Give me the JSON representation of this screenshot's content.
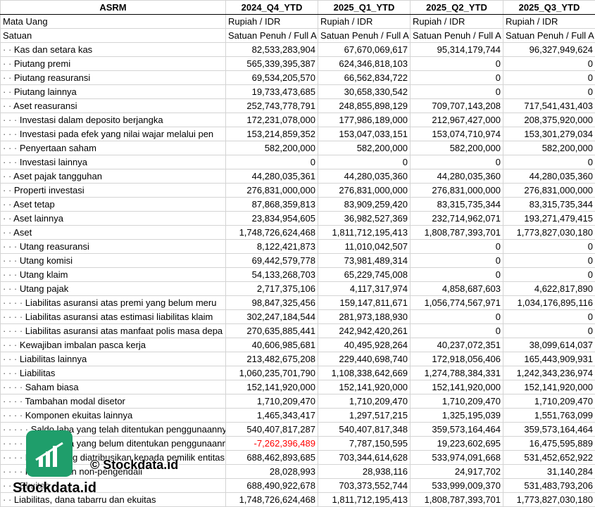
{
  "header": {
    "ticker": "ASRM",
    "periods": [
      "2024_Q4_YTD",
      "2025_Q1_YTD",
      "2025_Q2_YTD",
      "2025_Q3_YTD"
    ]
  },
  "meta_rows": [
    {
      "label": "Mata Uang",
      "values": [
        "Rupiah / IDR",
        "Rupiah / IDR",
        "Rupiah / IDR",
        "Rupiah / IDR"
      ]
    },
    {
      "label": "Satuan",
      "values": [
        "Satuan Penuh / Full A",
        "Satuan Penuh / Full A",
        "Satuan Penuh / Full A",
        "Satuan Penuh / Full A"
      ]
    }
  ],
  "rows": [
    {
      "dots": "· · ",
      "label": "Kas dan setara kas",
      "values": [
        "82,533,283,904",
        "67,670,069,617",
        "95,314,179,744",
        "96,327,949,624"
      ]
    },
    {
      "dots": "· · ",
      "label": "Piutang premi",
      "values": [
        "565,339,395,387",
        "624,346,818,103",
        "0",
        "0"
      ]
    },
    {
      "dots": "· · ",
      "label": "Piutang reasuransi",
      "values": [
        "69,534,205,570",
        "66,562,834,722",
        "0",
        "0"
      ]
    },
    {
      "dots": "· · ",
      "label": "Piutang lainnya",
      "values": [
        "19,733,473,685",
        "30,658,330,542",
        "0",
        "0"
      ]
    },
    {
      "dots": "· · ",
      "label": "Aset reasuransi",
      "values": [
        "252,743,778,791",
        "248,855,898,129",
        "709,707,143,208",
        "717,541,431,403"
      ]
    },
    {
      "dots": "· · · ",
      "label": "Investasi dalam deposito berjangka",
      "values": [
        "172,231,078,000",
        "177,986,189,000",
        "212,967,427,000",
        "208,375,920,000"
      ]
    },
    {
      "dots": "· · · ",
      "label": "Investasi pada efek yang nilai wajar melalui pen",
      "values": [
        "153,214,859,352",
        "153,047,033,151",
        "153,074,710,974",
        "153,301,279,034"
      ]
    },
    {
      "dots": "· · · ",
      "label": "Penyertaan saham",
      "values": [
        "582,200,000",
        "582,200,000",
        "582,200,000",
        "582,200,000"
      ]
    },
    {
      "dots": "· · · ",
      "label": "Investasi lainnya",
      "values": [
        "0",
        "0",
        "0",
        "0"
      ]
    },
    {
      "dots": "· · ",
      "label": "Aset pajak tangguhan",
      "values": [
        "44,280,035,361",
        "44,280,035,360",
        "44,280,035,360",
        "44,280,035,360"
      ]
    },
    {
      "dots": "· · ",
      "label": "Properti investasi",
      "values": [
        "276,831,000,000",
        "276,831,000,000",
        "276,831,000,000",
        "276,831,000,000"
      ]
    },
    {
      "dots": "· · ",
      "label": "Aset tetap",
      "values": [
        "87,868,359,813",
        "83,909,259,420",
        "83,315,735,344",
        "83,315,735,344"
      ]
    },
    {
      "dots": "· · ",
      "label": "Aset lainnya",
      "values": [
        "23,834,954,605",
        "36,982,527,369",
        "232,714,962,071",
        "193,271,479,415"
      ]
    },
    {
      "dots": "· · ",
      "label": "Aset",
      "values": [
        "1,748,726,624,468",
        "1,811,712,195,413",
        "1,808,787,393,701",
        "1,773,827,030,180"
      ]
    },
    {
      "dots": "· · · ",
      "label": "Utang reasuransi",
      "values": [
        "8,122,421,873",
        "11,010,042,507",
        "0",
        "0"
      ]
    },
    {
      "dots": "· · · ",
      "label": "Utang komisi",
      "values": [
        "69,442,579,778",
        "73,981,489,314",
        "0",
        "0"
      ]
    },
    {
      "dots": "· · · ",
      "label": "Utang klaim",
      "values": [
        "54,133,268,703",
        "65,229,745,008",
        "0",
        "0"
      ]
    },
    {
      "dots": "· · · ",
      "label": "Utang pajak",
      "values": [
        "2,717,375,106",
        "4,117,317,974",
        "4,858,687,603",
        "4,622,817,890"
      ]
    },
    {
      "dots": "· · · · ",
      "label": "Liabilitas asuransi atas premi yang belum meru",
      "values": [
        "98,847,325,456",
        "159,147,811,671",
        "1,056,774,567,971",
        "1,034,176,895,116"
      ]
    },
    {
      "dots": "· · · · ",
      "label": "Liabilitas asuransi atas estimasi liabilitas klaim",
      "values": [
        "302,247,184,544",
        "281,973,188,930",
        "0",
        "0"
      ]
    },
    {
      "dots": "· · · · ",
      "label": "Liabilitas asuransi atas manfaat polis masa depa",
      "values": [
        "270,635,885,441",
        "242,942,420,261",
        "0",
        "0"
      ]
    },
    {
      "dots": "· · · ",
      "label": "Kewajiban imbalan pasca kerja",
      "values": [
        "40,606,985,681",
        "40,495,928,264",
        "40,237,072,351",
        "38,099,614,037"
      ]
    },
    {
      "dots": "· · · ",
      "label": "Liabilitas lainnya",
      "values": [
        "213,482,675,208",
        "229,440,698,740",
        "172,918,056,406",
        "165,443,909,931"
      ]
    },
    {
      "dots": "· · · ",
      "label": "Liabilitas",
      "values": [
        "1,060,235,701,790",
        "1,108,338,642,669",
        "1,274,788,384,331",
        "1,242,343,236,974"
      ]
    },
    {
      "dots": "· · · · ",
      "label": "Saham biasa",
      "values": [
        "152,141,920,000",
        "152,141,920,000",
        "152,141,920,000",
        "152,141,920,000"
      ]
    },
    {
      "dots": "· · · · ",
      "label": "Tambahan modal disetor",
      "values": [
        "1,710,209,470",
        "1,710,209,470",
        "1,710,209,470",
        "1,710,209,470"
      ]
    },
    {
      "dots": "· · · · ",
      "label": "Komponen ekuitas lainnya",
      "values": [
        "1,465,343,417",
        "1,297,517,215",
        "1,325,195,039",
        "1,551,763,099"
      ]
    },
    {
      "dots": "· · · · · ",
      "label": "Saldo laba yang telah ditentukan penggunaannya",
      "values": [
        "540,407,817,287",
        "540,407,817,348",
        "359,573,164,464",
        "359,573,164,464"
      ]
    },
    {
      "dots": "· · · · · ",
      "label": "Saldo laba yang belum ditentukan penggunaannya",
      "values": [
        "-7,262,396,489",
        "7,787,150,595",
        "19,223,602,695",
        "16,475,595,889"
      ],
      "negative_first": true
    },
    {
      "dots": "· · · · ",
      "label": "Ekuitas yang diatribusikan kepada pemilik entitas",
      "values": [
        "688,462,893,685",
        "703,344,614,628",
        "533,974,091,668",
        "531,452,652,922"
      ]
    },
    {
      "dots": "· · · · ",
      "label": "Kepentingan non-pengendali",
      "values": [
        "28,028,993",
        "28,938,116",
        "24,917,702",
        "31,140,284"
      ]
    },
    {
      "dots": "· · · ",
      "label": "Ekuitas",
      "values": [
        "688,490,922,678",
        "703,373,552,744",
        "533,999,009,370",
        "531,483,793,206"
      ]
    },
    {
      "dots": "· · ",
      "label": "Liabilitas, dana tabarru dan ekuitas",
      "values": [
        "1,748,726,624,468",
        "1,811,712,195,413",
        "1,808,787,393,701",
        "1,773,827,030,180"
      ]
    }
  ],
  "watermark": {
    "overlay_text": "© Stockdata.id",
    "brand_text": "Stockdata.id",
    "brand_color": "#1f9e6b"
  }
}
